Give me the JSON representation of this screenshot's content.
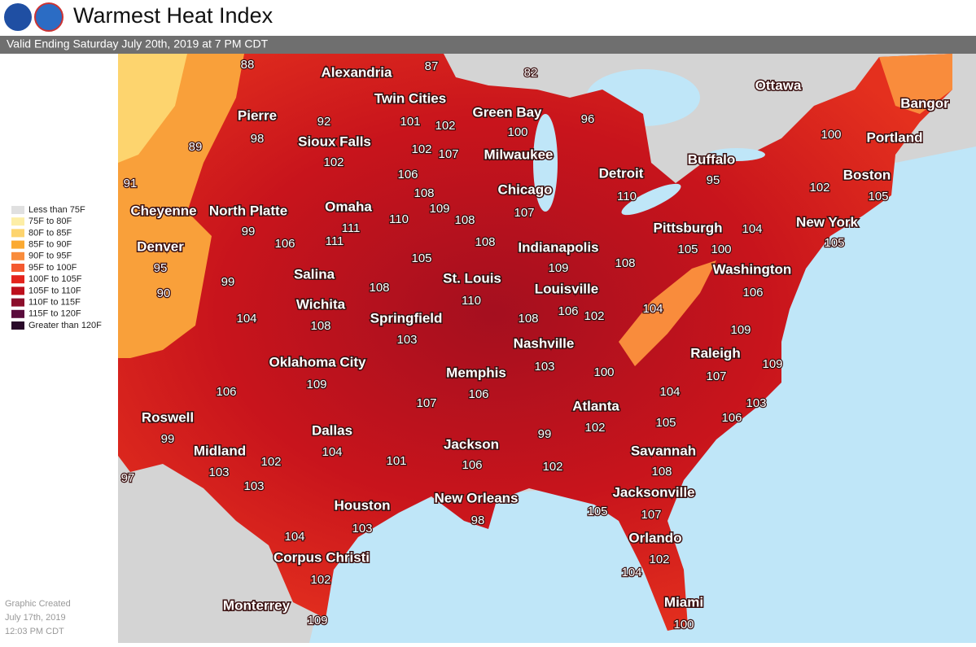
{
  "header": {
    "title": "Warmest Heat Index",
    "subtitle": "Valid Ending Saturday July 20th, 2019 at 7 PM CDT"
  },
  "legend": {
    "items": [
      {
        "label": "Less than 75F",
        "color": "#e0e0e0"
      },
      {
        "label": "75F to 80F",
        "color": "#fdeea6"
      },
      {
        "label": "80F to 85F",
        "color": "#fdd46e"
      },
      {
        "label": "85F to 90F",
        "color": "#fbaa32"
      },
      {
        "label": "90F to 95F",
        "color": "#f98c3c"
      },
      {
        "label": "95F to 100F",
        "color": "#f45a30"
      },
      {
        "label": "100F to 105F",
        "color": "#e4231c"
      },
      {
        "label": "105F to 110F",
        "color": "#bd0f1d"
      },
      {
        "label": "110F to 115F",
        "color": "#8c0e2b"
      },
      {
        "label": "115F to 120F",
        "color": "#5a0b3c"
      },
      {
        "label": "Greater than 120F",
        "color": "#2a0a2a"
      }
    ]
  },
  "footer": {
    "lines": [
      "Graphic Created",
      "July 17th, 2019",
      "12:03 PM CDT"
    ]
  },
  "map": {
    "cities": [
      "Alexandria",
      "Twin Cities",
      "Pierre",
      "Green Bay",
      "Sioux Falls",
      "Milwaukee",
      "Ottawa",
      "Bangor",
      "Portland",
      "Buffalo",
      "Detroit",
      "Boston",
      "Chicago",
      "Cheyenne",
      "North Platte",
      "Omaha",
      "New York",
      "Pittsburgh",
      "Denver",
      "Indianapolis",
      "Washington",
      "Salina",
      "St. Louis",
      "Louisville",
      "Wichita",
      "Springfield",
      "Nashville",
      "Raleigh",
      "Oklahoma City",
      "Memphis",
      "Atlanta",
      "Roswell",
      "Dallas",
      "Jackson",
      "Midland",
      "Savannah",
      "Jacksonville",
      "New Orleans",
      "Houston",
      "Orlando",
      "Corpus Christi",
      "Monterrey",
      "Miami"
    ],
    "values": [
      88,
      87,
      82,
      92,
      101,
      102,
      100,
      96,
      98,
      89,
      102,
      107,
      100,
      102,
      106,
      95,
      102,
      91,
      108,
      109,
      110,
      105,
      107,
      110,
      108,
      111,
      111,
      99,
      106,
      108,
      104,
      105,
      105,
      100,
      105,
      109,
      108,
      95,
      99,
      108,
      90,
      110,
      106,
      106,
      102,
      104,
      108,
      104,
      108,
      109,
      103,
      103,
      100,
      109,
      109,
      107,
      106,
      104,
      106,
      107,
      103,
      106,
      105,
      102,
      99,
      99,
      102,
      104,
      103,
      101,
      106,
      102,
      108,
      103,
      97,
      98,
      105,
      107,
      103,
      104,
      102,
      104,
      102,
      109,
      100
    ]
  }
}
